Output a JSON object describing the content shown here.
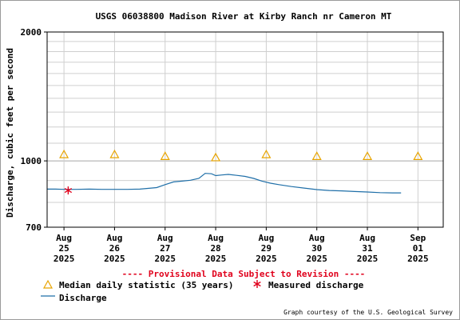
{
  "chart_data": {
    "type": "line",
    "title": "USGS 06038800 Madison River at Kirby Ranch nr Cameron MT",
    "ylabel": "Discharge, cubic feet per second",
    "xlabel": "",
    "y_scale": "log",
    "ylim": [
      700,
      2000
    ],
    "y_tick_labels": [
      "2000",
      "1000",
      "700"
    ],
    "x_ticks": [
      {
        "label": [
          "Aug",
          "25",
          "2025"
        ],
        "date": "2025-08-25"
      },
      {
        "label": [
          "Aug",
          "26",
          "2025"
        ],
        "date": "2025-08-26"
      },
      {
        "label": [
          "Aug",
          "27",
          "2025"
        ],
        "date": "2025-08-27"
      },
      {
        "label": [
          "Aug",
          "28",
          "2025"
        ],
        "date": "2025-08-28"
      },
      {
        "label": [
          "Aug",
          "29",
          "2025"
        ],
        "date": "2025-08-29"
      },
      {
        "label": [
          "Aug",
          "30",
          "2025"
        ],
        "date": "2025-08-30"
      },
      {
        "label": [
          "Aug",
          "31",
          "2025"
        ],
        "date": "2025-08-31"
      },
      {
        "label": [
          "Sep",
          "01",
          "2025"
        ],
        "date": "2025-09-01"
      }
    ],
    "xlim": [
      "2025-08-24T16:00",
      "2025-09-01T12:00"
    ],
    "grid": true,
    "series": [
      {
        "name": "Discharge",
        "color": "#1f6fa8",
        "points": [
          [
            "2025-08-24T16:00",
            859
          ],
          [
            "2025-08-24T20:00",
            859
          ],
          [
            "2025-08-25T00:00",
            858
          ],
          [
            "2025-08-25T06:00",
            858
          ],
          [
            "2025-08-25T12:00",
            859
          ],
          [
            "2025-08-25T18:00",
            858
          ],
          [
            "2025-08-26T00:00",
            858
          ],
          [
            "2025-08-26T06:00",
            858
          ],
          [
            "2025-08-26T12:00",
            859
          ],
          [
            "2025-08-26T20:00",
            866
          ],
          [
            "2025-08-27T00:00",
            880
          ],
          [
            "2025-08-27T04:00",
            893
          ],
          [
            "2025-08-27T08:00",
            897
          ],
          [
            "2025-08-27T12:00",
            901
          ],
          [
            "2025-08-27T16:00",
            910
          ],
          [
            "2025-08-27T19:00",
            935
          ],
          [
            "2025-08-27T22:00",
            933
          ],
          [
            "2025-08-28T00:00",
            924
          ],
          [
            "2025-08-28T03:00",
            927
          ],
          [
            "2025-08-28T06:00",
            930
          ],
          [
            "2025-08-28T10:00",
            925
          ],
          [
            "2025-08-28T14:00",
            920
          ],
          [
            "2025-08-28T18:00",
            910
          ],
          [
            "2025-08-28T22:00",
            897
          ],
          [
            "2025-08-29T02:00",
            887
          ],
          [
            "2025-08-29T06:00",
            880
          ],
          [
            "2025-08-29T12:00",
            871
          ],
          [
            "2025-08-29T18:00",
            864
          ],
          [
            "2025-08-30T00:00",
            857
          ],
          [
            "2025-08-30T06:00",
            853
          ],
          [
            "2025-08-30T12:00",
            851
          ],
          [
            "2025-08-30T18:00",
            848
          ],
          [
            "2025-08-31T00:00",
            846
          ],
          [
            "2025-08-31T06:00",
            843
          ],
          [
            "2025-08-31T12:00",
            842
          ],
          [
            "2025-08-31T16:00",
            842
          ]
        ]
      },
      {
        "name": "Median daily statistic (35 years)",
        "marker": "triangle",
        "color": "#e8a400",
        "points": [
          [
            "2025-08-25T00:00",
            1035
          ],
          [
            "2025-08-26T00:00",
            1035
          ],
          [
            "2025-08-27T00:00",
            1025
          ],
          [
            "2025-08-28T00:00",
            1018
          ],
          [
            "2025-08-29T00:00",
            1035
          ],
          [
            "2025-08-30T00:00",
            1025
          ],
          [
            "2025-08-31T00:00",
            1025
          ],
          [
            "2025-09-01T00:00",
            1025
          ]
        ]
      },
      {
        "name": "Measured discharge",
        "marker": "star",
        "color": "#e0001b",
        "points": [
          [
            "2025-08-25T02:00",
            853
          ]
        ]
      }
    ],
    "legend": {
      "placement": "bottom",
      "items": [
        {
          "label": "Median daily statistic (35 years)",
          "symbol": "triangle"
        },
        {
          "label": "Measured discharge",
          "symbol": "star"
        },
        {
          "label": "Discharge",
          "symbol": "line"
        }
      ]
    },
    "annotations": {
      "provisional": "---- Provisional Data Subject to Revision ----",
      "courtesy": "Graph courtesy of the U.S. Geological Survey"
    }
  }
}
